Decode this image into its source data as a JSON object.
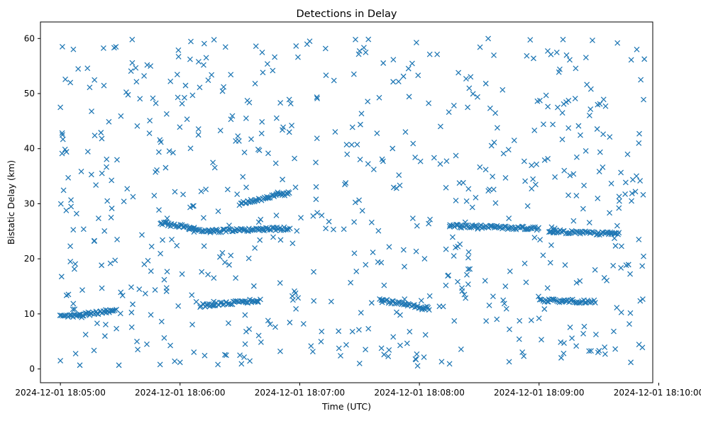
{
  "chart_data": {
    "type": "scatter",
    "title": "Detections in Delay",
    "xlabel": "Time (UTC)",
    "ylabel": "Bistatic Delay (km)",
    "x_axis": {
      "type": "datetime",
      "min": "2024-12-01 18:04:50",
      "max": "2024-12-01 18:09:57",
      "tick_labels": [
        "2024-12-01 18:05:00",
        "2024-12-01 18:06:00",
        "2024-12-01 18:07:00",
        "2024-12-01 18:08:00",
        "2024-12-01 18:09:00",
        "2024-12-01 18:10:00"
      ]
    },
    "y_axis": {
      "min": -2.5,
      "max": 63,
      "tick_labels": [
        "0",
        "10",
        "20",
        "30",
        "40",
        "50",
        "60"
      ]
    },
    "grid": false,
    "legend": "none",
    "marker": "x",
    "color": "#1f77b4",
    "series": [
      {
        "tracks": [
          {
            "t": [
              "2024-12-01 18:05:00",
              "2024-12-01 18:05:28"
            ],
            "y": [
              9.5,
              10.5
            ]
          },
          {
            "t": [
              "2024-12-01 18:06:10",
              "2024-12-01 18:06:40"
            ],
            "y": [
              11.5,
              12.5
            ]
          },
          {
            "t": [
              "2024-12-01 18:09:00",
              "2024-12-01 18:09:28"
            ],
            "y": [
              12.5,
              12.2
            ]
          },
          {
            "t": [
              "2024-12-01 18:05:50",
              "2024-12-01 18:06:15"
            ],
            "y": [
              26.5,
              25.0
            ]
          },
          {
            "t": [
              "2024-12-01 18:06:15",
              "2024-12-01 18:06:55"
            ],
            "y": [
              25.0,
              25.5
            ]
          },
          {
            "t": [
              "2024-12-01 18:08:15",
              "2024-12-01 18:09:00"
            ],
            "y": [
              26.0,
              25.5
            ]
          },
          {
            "t": [
              "2024-12-01 18:09:05",
              "2024-12-01 18:09:40"
            ],
            "y": [
              25.0,
              24.5
            ]
          },
          {
            "t": [
              "2024-12-01 18:07:40",
              "2024-12-01 18:08:05"
            ],
            "y": [
              12.5,
              11.0
            ]
          },
          {
            "t": [
              "2024-12-01 18:06:30",
              "2024-12-01 18:06:55"
            ],
            "y": [
              30.0,
              32.0
            ]
          }
        ],
        "scatter": {
          "t_start": "2024-12-01 18:05:00",
          "t_end": "2024-12-01 18:09:53",
          "y_range": [
            0.5,
            60.0
          ],
          "count": 640
        },
        "points": [
          {
            "t": "2024-12-01 18:05:00",
            "y": 1.5
          },
          {
            "t": "2024-12-01 18:05:00",
            "y": 47.5
          },
          {
            "t": "2024-12-01 18:05:01",
            "y": 58.5
          },
          {
            "t": "2024-12-01 18:05:01",
            "y": 42.5
          },
          {
            "t": "2024-12-01 18:05:05",
            "y": 19.5
          },
          {
            "t": "2024-12-01 18:05:05",
            "y": 52.0
          },
          {
            "t": "2024-12-01 18:05:36",
            "y": 59.8
          },
          {
            "t": "2024-12-01 18:05:50",
            "y": 0.8
          },
          {
            "t": "2024-12-01 18:06:00",
            "y": 1.2
          },
          {
            "t": "2024-12-01 18:06:30",
            "y": 2.5
          },
          {
            "t": "2024-12-01 18:07:05",
            "y": 59.5
          },
          {
            "t": "2024-12-01 18:07:30",
            "y": 1.0
          },
          {
            "t": "2024-12-01 18:07:58",
            "y": 1.8
          },
          {
            "t": "2024-12-01 18:08:45",
            "y": 1.3
          },
          {
            "t": "2024-12-01 18:09:12",
            "y": 59.8
          },
          {
            "t": "2024-12-01 18:09:46",
            "y": 1.2
          },
          {
            "t": "2024-12-01 18:09:49",
            "y": 58.0
          },
          {
            "t": "2024-12-01 18:09:50",
            "y": 23.5
          },
          {
            "t": "2024-12-01 18:09:50",
            "y": 41.0
          },
          {
            "t": "2024-12-01 18:09:51",
            "y": 52.5
          }
        ]
      }
    ]
  }
}
